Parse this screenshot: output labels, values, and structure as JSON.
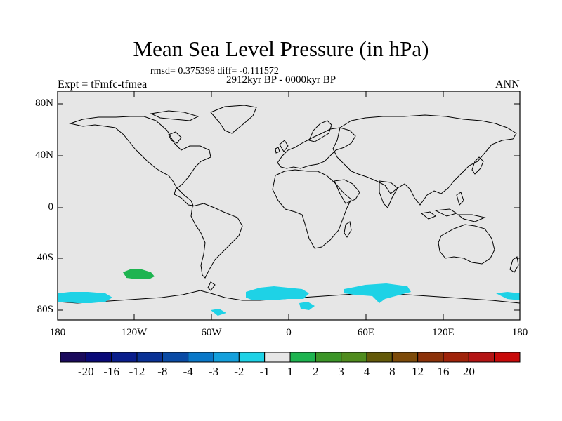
{
  "title": "Mean Sea Level Pressure (in hPa)",
  "stats": "rmsd= 0.375398 diff= -0.111572",
  "period": "2912kyr BP - 0000kyr BP",
  "experiment": "Expt = tFmfc-tfmea",
  "season": "ANN",
  "map": {
    "background_color": "#e6e6e6",
    "lat_ticks": [
      "80N",
      "40N",
      "0",
      "40S",
      "80S"
    ],
    "lon_ticks": [
      "180",
      "120W",
      "60W",
      "0",
      "60E",
      "120E",
      "180"
    ]
  },
  "colorbar": {
    "colors": [
      "#1a0a5c",
      "#0a0a78",
      "#0a1e8c",
      "#0a3296",
      "#0a4ba5",
      "#0a78c8",
      "#14a0dc",
      "#1ed2e6",
      "#e6e6e6",
      "#1eb450",
      "#3c9628",
      "#508c1e",
      "#645a0a",
      "#7d4b0a",
      "#8c320a",
      "#a0230a",
      "#b41414",
      "#c80a0a"
    ],
    "labels": [
      "-20",
      "-16",
      "-12",
      "-8",
      "-4",
      "-3",
      "-2",
      "-1",
      "1",
      "2",
      "3",
      "4",
      "8",
      "12",
      "16",
      "20"
    ]
  }
}
